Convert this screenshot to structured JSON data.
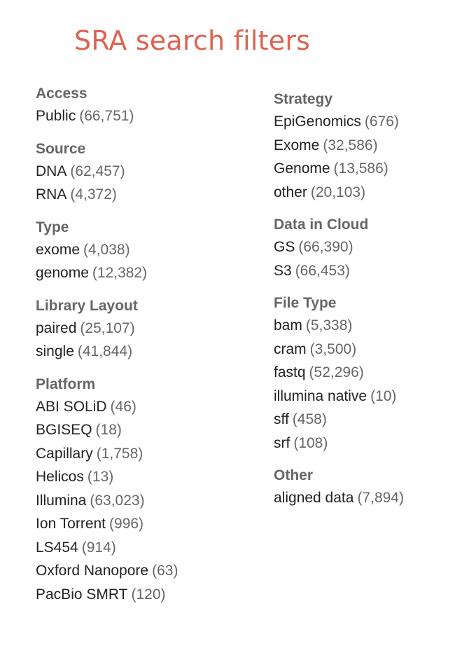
{
  "title": "SRA search filters",
  "colors": {
    "title": "#dc6450",
    "heading": "#666666",
    "label": "#222222",
    "count": "#666666"
  },
  "left_groups": [
    {
      "title": "Access",
      "items": [
        {
          "label": "Public",
          "count": "(66,751)"
        }
      ]
    },
    {
      "title": "Source",
      "items": [
        {
          "label": "DNA",
          "count": "(62,457)"
        },
        {
          "label": "RNA",
          "count": "(4,372)"
        }
      ]
    },
    {
      "title": "Type",
      "items": [
        {
          "label": "exome",
          "count": "(4,038)"
        },
        {
          "label": "genome",
          "count": "(12,382)"
        }
      ]
    },
    {
      "title": "Library Layout",
      "items": [
        {
          "label": "paired",
          "count": "(25,107)"
        },
        {
          "label": "single",
          "count": "(41,844)"
        }
      ]
    },
    {
      "title": "Platform",
      "items": [
        {
          "label": "ABI SOLiD",
          "count": "(46)"
        },
        {
          "label": "BGISEQ",
          "count": "(18)"
        },
        {
          "label": "Capillary",
          "count": "(1,758)"
        },
        {
          "label": "Helicos",
          "count": "(13)"
        },
        {
          "label": "Illumina",
          "count": "(63,023)"
        },
        {
          "label": "Ion Torrent",
          "count": "(996)"
        },
        {
          "label": "LS454",
          "count": "(914)"
        },
        {
          "label": "Oxford Nanopore",
          "count": "(63)"
        },
        {
          "label": "PacBio SMRT",
          "count": "(120)"
        }
      ]
    }
  ],
  "right_groups": [
    {
      "title": "Strategy",
      "items": [
        {
          "label": "EpiGenomics",
          "count": "(676)"
        },
        {
          "label": "Exome",
          "count": "(32,586)"
        },
        {
          "label": "Genome",
          "count": "(13,586)"
        },
        {
          "label": "other",
          "count": "(20,103)"
        }
      ]
    },
    {
      "title": "Data in Cloud",
      "items": [
        {
          "label": "GS",
          "count": "(66,390)"
        },
        {
          "label": "S3",
          "count": "(66,453)"
        }
      ]
    },
    {
      "title": "File Type",
      "items": [
        {
          "label": "bam",
          "count": "(5,338)"
        },
        {
          "label": "cram",
          "count": "(3,500)"
        },
        {
          "label": "fastq",
          "count": "(52,296)"
        },
        {
          "label": "illumina native",
          "count": "(10)"
        },
        {
          "label": "sff",
          "count": "(458)"
        },
        {
          "label": "srf",
          "count": "(108)"
        }
      ]
    },
    {
      "title": "Other",
      "items": [
        {
          "label": "aligned data",
          "count": "(7,894)"
        }
      ]
    }
  ]
}
